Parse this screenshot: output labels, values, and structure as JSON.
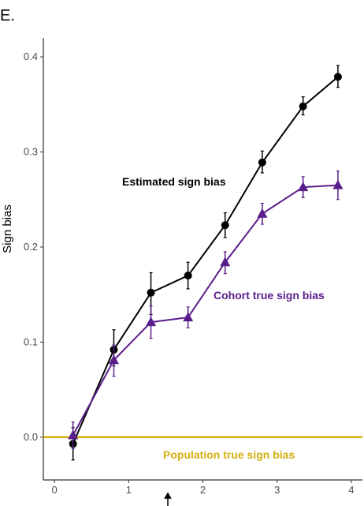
{
  "panel_label": "E.",
  "chart_data": {
    "type": "line",
    "title": "",
    "xlabel": "",
    "ylabel": "Sign bias",
    "xlim": [
      -0.15,
      4.15
    ],
    "ylim": [
      -0.045,
      0.42
    ],
    "x_ticks": [
      0,
      1,
      2,
      3,
      4
    ],
    "y_ticks": [
      0.0,
      0.1,
      0.2,
      0.3,
      0.4
    ],
    "y_tick_labels": [
      "0.0",
      "0.1",
      "0.2",
      "0.3",
      "0.4"
    ],
    "grid": false,
    "reference_line": {
      "y": 0.0,
      "label": "Population true sign bias",
      "color": "#D4B012"
    },
    "series": [
      {
        "name": "Estimated sign bias",
        "color": "#000000",
        "marker": "circle",
        "points": [
          {
            "x": 0.25,
            "y": -0.007,
            "lo": -0.024,
            "hi": 0.01
          },
          {
            "x": 0.8,
            "y": 0.092,
            "lo": 0.075,
            "hi": 0.113
          },
          {
            "x": 1.3,
            "y": 0.152,
            "lo": 0.129,
            "hi": 0.173
          },
          {
            "x": 1.8,
            "y": 0.17,
            "lo": 0.156,
            "hi": 0.184
          },
          {
            "x": 2.3,
            "y": 0.223,
            "lo": 0.21,
            "hi": 0.236
          },
          {
            "x": 2.8,
            "y": 0.289,
            "lo": 0.278,
            "hi": 0.301
          },
          {
            "x": 3.35,
            "y": 0.348,
            "lo": 0.339,
            "hi": 0.358
          },
          {
            "x": 3.82,
            "y": 0.379,
            "lo": 0.368,
            "hi": 0.391
          }
        ]
      },
      {
        "name": "Cohort true sign bias",
        "color": "#5A1E8C",
        "marker": "triangle",
        "points": [
          {
            "x": 0.25,
            "y": 0.002,
            "lo": -0.012,
            "hi": 0.016
          },
          {
            "x": 0.8,
            "y": 0.081,
            "lo": 0.064,
            "hi": 0.097
          },
          {
            "x": 1.3,
            "y": 0.121,
            "lo": 0.104,
            "hi": 0.138
          },
          {
            "x": 1.8,
            "y": 0.126,
            "lo": 0.115,
            "hi": 0.137
          },
          {
            "x": 2.3,
            "y": 0.184,
            "lo": 0.172,
            "hi": 0.195
          },
          {
            "x": 2.8,
            "y": 0.235,
            "lo": 0.224,
            "hi": 0.246
          },
          {
            "x": 3.35,
            "y": 0.263,
            "lo": 0.252,
            "hi": 0.274
          },
          {
            "x": 3.82,
            "y": 0.265,
            "lo": 0.25,
            "hi": 0.28
          }
        ]
      }
    ]
  }
}
